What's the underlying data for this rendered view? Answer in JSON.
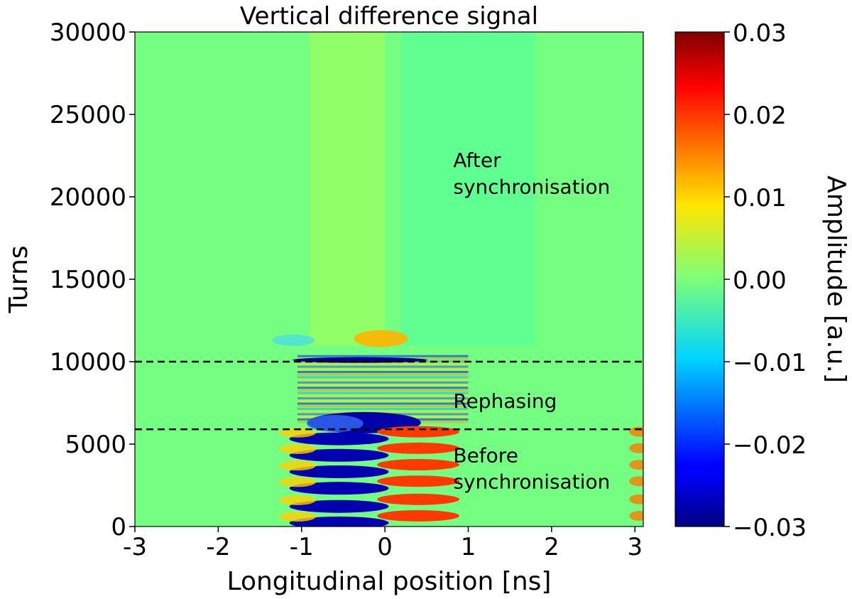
{
  "chart_data": {
    "type": "heatmap",
    "title": "Vertical difference signal",
    "xlabel": "Longitudinal position [ns]",
    "ylabel": "Turns",
    "xlim": [
      -3,
      3.1
    ],
    "ylim": [
      0,
      30000
    ],
    "x_ticks": [
      -3,
      -2,
      -1,
      0,
      1,
      2,
      3
    ],
    "x_tick_labels": [
      "-3",
      "-2",
      "-1",
      "0",
      "1",
      "2",
      "3"
    ],
    "y_ticks": [
      0,
      5000,
      10000,
      15000,
      20000,
      25000,
      30000
    ],
    "y_tick_labels": [
      "0",
      "5000",
      "10000",
      "15000",
      "20000",
      "25000",
      "30000"
    ],
    "colorbar": {
      "label": "Amplitude [a.u.]",
      "range": [
        -0.03,
        0.03
      ],
      "colormap": "jet",
      "ticks": [
        -0.03,
        -0.02,
        -0.01,
        0.0,
        0.01,
        0.02,
        0.03
      ],
      "tick_labels": [
        "−0.03",
        "−0.02",
        "−0.01",
        "0.00",
        "0.01",
        "0.02",
        "0.03"
      ]
    },
    "horizontal_lines": [
      {
        "y": 10000,
        "style": "dashed",
        "color": "#000000"
      },
      {
        "y": 5900,
        "style": "dashed",
        "color": "#000000"
      }
    ],
    "annotations": [
      {
        "text": "After",
        "x": 0.82,
        "y": 21800
      },
      {
        "text": "synchronisation",
        "x": 0.82,
        "y": 20200
      },
      {
        "text": "Rephasing",
        "x": 0.82,
        "y": 7200
      },
      {
        "text": "Before",
        "x": 0.82,
        "y": 3900
      },
      {
        "text": "synchronisation",
        "x": 0.82,
        "y": 2300
      }
    ],
    "regions": [
      {
        "name": "before",
        "y_range": [
          0,
          5900
        ],
        "description_values": {
          "peak_amplitude": 0.03,
          "trough_amplitude": -0.03
        }
      },
      {
        "name": "rephasing",
        "y_range": [
          5900,
          10000
        ]
      },
      {
        "name": "after",
        "y_range": [
          10000,
          30000
        ],
        "description_values": {
          "near_zero_background": 0.0
        }
      }
    ]
  },
  "colors": {
    "background": "#ffffff",
    "dash": "#000000"
  }
}
